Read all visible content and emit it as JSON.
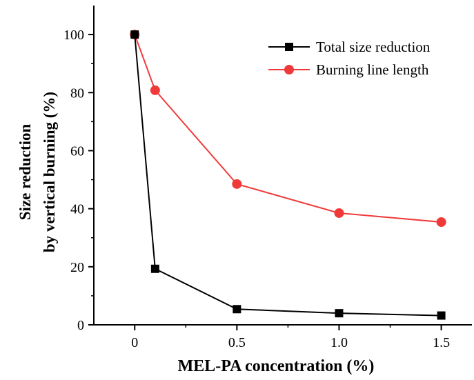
{
  "chart_data": {
    "type": "line",
    "xlabel": "MEL-PA concentration (%)",
    "ylabel_lines": [
      "Size reduction",
      "by vertical burning (%)"
    ],
    "x": [
      0,
      0.1,
      0.5,
      1.0,
      1.5
    ],
    "xlim": [
      -0.2,
      1.65
    ],
    "ylim": [
      0,
      110
    ],
    "xticks": [
      0,
      0.5,
      1.0,
      1.5
    ],
    "xtick_labels": [
      "0",
      "0.5",
      "1.0",
      "1.5"
    ],
    "yticks": [
      0,
      20,
      40,
      60,
      80,
      100
    ],
    "ytick_labels": [
      "0",
      "20",
      "40",
      "60",
      "80",
      "100"
    ],
    "grid": false,
    "legend_position": "top-right",
    "series": [
      {
        "name": "Total size reduction",
        "color": "#000000",
        "marker": "square",
        "values": [
          100,
          19.3,
          5.4,
          4.0,
          3.2
        ]
      },
      {
        "name": "Burning line length",
        "color": "#f03a3a",
        "marker": "circle",
        "values": [
          100,
          80.8,
          48.5,
          38.5,
          35.4
        ]
      }
    ]
  }
}
